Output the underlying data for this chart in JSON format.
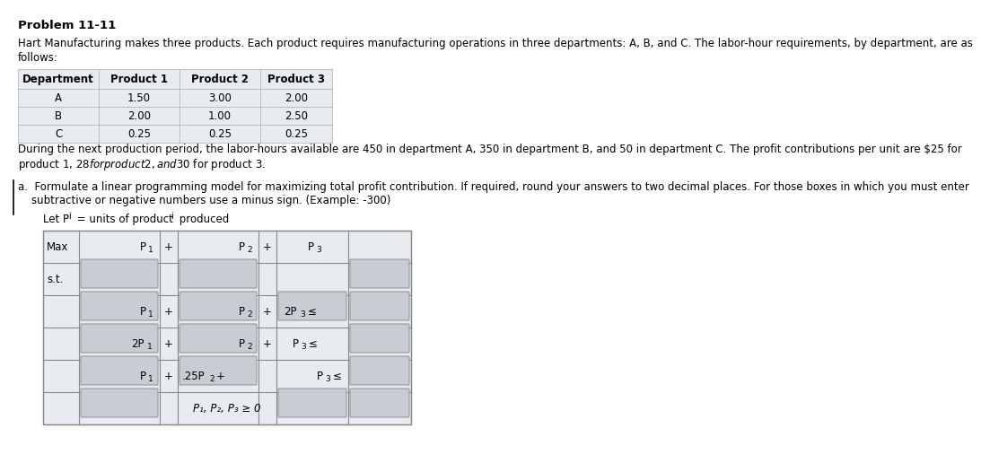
{
  "title": "Problem 11-11",
  "intro_line1": "Hart Manufacturing makes three products. Each product requires manufacturing operations in three departments: A, B, and C. The labor-hour requirements, by department, are as",
  "intro_line2": "follows:",
  "table_headers": [
    "Department",
    "Product 1",
    "Product 2",
    "Product 3"
  ],
  "table_rows": [
    [
      "A",
      "1.50",
      "3.00",
      "2.00"
    ],
    [
      "B",
      "2.00",
      "1.00",
      "2.50"
    ],
    [
      "C",
      "0.25",
      "0.25",
      "0.25"
    ]
  ],
  "middle_line1": "During the next production period, the labor-hours available are 450 in department A, 350 in department B, and 50 in department C. The profit contributions per unit are $25 for",
  "middle_line2": "product 1, $28 for product 2, and $30 for product 3.",
  "part_a_line1": "a.  Formulate a linear programming model for maximizing total profit contribution. If required, round your answers to two decimal places. For those boxes in which you must enter",
  "part_a_line2": "    subtractive or negative numbers use a minus sign. (Example: -300)",
  "let_text": "Let P",
  "bg_color": "#ffffff",
  "text_color": "#000000",
  "table_bg": "#e8ecf0",
  "grid_color": "#aaaaaa",
  "lp_bg": "#e8ecf0",
  "lp_grid": "#888888",
  "input_bg": "#c8cdd3"
}
